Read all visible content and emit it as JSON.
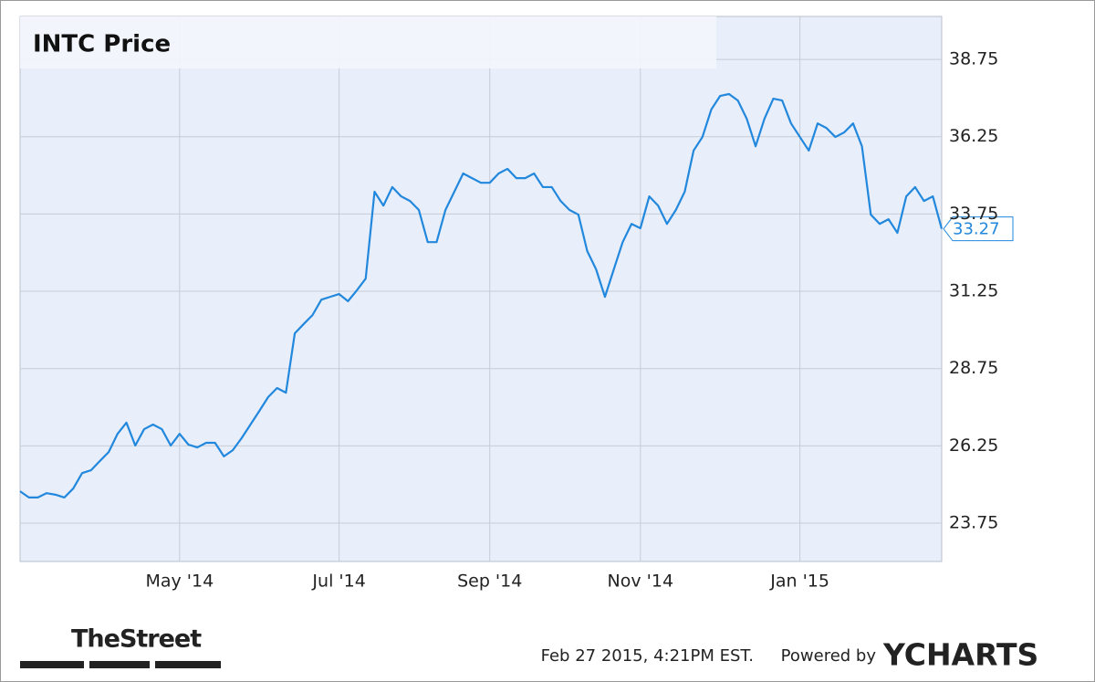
{
  "chart_data": {
    "type": "line",
    "title": "INTC Price",
    "color": "#2288dd",
    "grid": true,
    "categories": [
      null,
      null,
      null,
      null,
      null,
      null,
      null,
      null,
      null,
      null,
      null,
      null,
      null,
      null,
      null,
      null,
      null,
      null,
      "May '14",
      null,
      null,
      null,
      null,
      null,
      null,
      null,
      null,
      null,
      null,
      null,
      null,
      null,
      null,
      null,
      null,
      null,
      "Jul '14",
      null,
      null,
      null,
      null,
      null,
      null,
      null,
      null,
      null,
      null,
      null,
      null,
      null,
      null,
      null,
      null,
      "Sep '14",
      null,
      null,
      null,
      null,
      null,
      null,
      null,
      null,
      null,
      null,
      null,
      null,
      null,
      null,
      null,
      null,
      "Nov '14",
      null,
      null,
      null,
      null,
      null,
      null,
      null,
      null,
      null,
      null,
      null,
      null,
      null,
      null,
      null,
      null,
      null,
      "Jan '15",
      null,
      null,
      null,
      null,
      null,
      null,
      null,
      null,
      null,
      null,
      null,
      null,
      null,
      null,
      null,
      null
    ],
    "values": [
      24.78,
      24.58,
      24.58,
      24.72,
      24.67,
      24.58,
      24.87,
      25.37,
      25.46,
      25.76,
      26.05,
      26.64,
      27.0,
      26.26,
      26.79,
      26.94,
      26.79,
      26.26,
      26.64,
      26.29,
      26.2,
      26.35,
      26.35,
      25.91,
      26.11,
      26.5,
      26.94,
      27.38,
      27.83,
      28.12,
      27.97,
      29.89,
      30.19,
      30.48,
      30.98,
      31.07,
      31.16,
      30.93,
      31.28,
      31.66,
      34.47,
      34.02,
      34.62,
      34.32,
      34.17,
      33.88,
      32.84,
      32.84,
      33.88,
      34.47,
      35.06,
      34.91,
      34.76,
      34.76,
      35.06,
      35.21,
      34.91,
      34.91,
      35.06,
      34.62,
      34.62,
      34.17,
      33.88,
      33.73,
      32.55,
      31.96,
      31.07,
      31.96,
      32.84,
      33.43,
      33.29,
      34.32,
      34.02,
      33.43,
      33.88,
      34.47,
      35.8,
      36.24,
      37.13,
      37.57,
      37.63,
      37.42,
      36.83,
      35.94,
      36.83,
      37.48,
      37.42,
      36.68,
      36.24,
      35.8,
      36.68,
      36.53,
      36.24,
      36.39,
      36.68,
      35.94,
      33.73,
      33.43,
      33.58,
      33.14,
      34.32,
      34.62,
      34.17,
      34.32,
      33.27
    ],
    "ylim": [
      22.51,
      40.14
    ],
    "yticks": [
      23.75,
      26.25,
      28.75,
      31.25,
      33.75,
      36.25,
      38.75
    ],
    "source_logo": "TheStreet",
    "timestamp": "Feb 27 2015, 4:21PM EST.",
    "powered_by": "Powered by",
    "brand": "YCHARTS"
  }
}
